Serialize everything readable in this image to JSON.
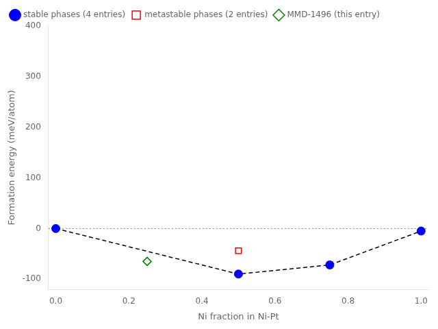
{
  "chart_data": {
    "type": "scatter",
    "xlabel": "Ni fraction in Ni-Pt",
    "ylabel": "Formation energy (meV/atom)",
    "series": [
      {
        "type": "line",
        "color": "#000000",
        "line_style": "dashed",
        "x": [
          0.0,
          0.5,
          0.75,
          1.0
        ],
        "values": [
          0.0,
          -90.0,
          -72.0,
          -5.0
        ]
      },
      {
        "name": "stable phases (4 entries)",
        "color": "#0000ff",
        "marker": "circle",
        "x": [
          0.0,
          0.5,
          0.75,
          1.0
        ],
        "values": [
          0.0,
          -90.0,
          -72.0,
          -5.0
        ]
      },
      {
        "name": "metastable phases (2 entries)",
        "color": "#ff0000",
        "marker": "open square",
        "x": [
          0.5,
          0.75
        ],
        "values": [
          -44.0,
          -72.0
        ]
      },
      {
        "name": "MMD-1496 (this entry)",
        "color": "#008000",
        "marker": "open diamond",
        "x": [
          0.25
        ],
        "values": [
          -65.0
        ]
      }
    ],
    "hlines": [
      {
        "y": 0.0,
        "color": "#808080",
        "line_style": "dotted"
      }
    ],
    "xlim": [
      -0.02,
      1.02
    ],
    "ylim": [
      -120,
      400
    ],
    "xticks": [
      {
        "value": 0.0,
        "label": "0.0"
      },
      0.2,
      0.4,
      0.6,
      0.8,
      {
        "value": 1.0,
        "label": "1.0"
      }
    ],
    "yticks": [
      -100,
      0,
      100,
      200,
      300,
      400
    ],
    "grid": false,
    "legend": "upper left"
  }
}
